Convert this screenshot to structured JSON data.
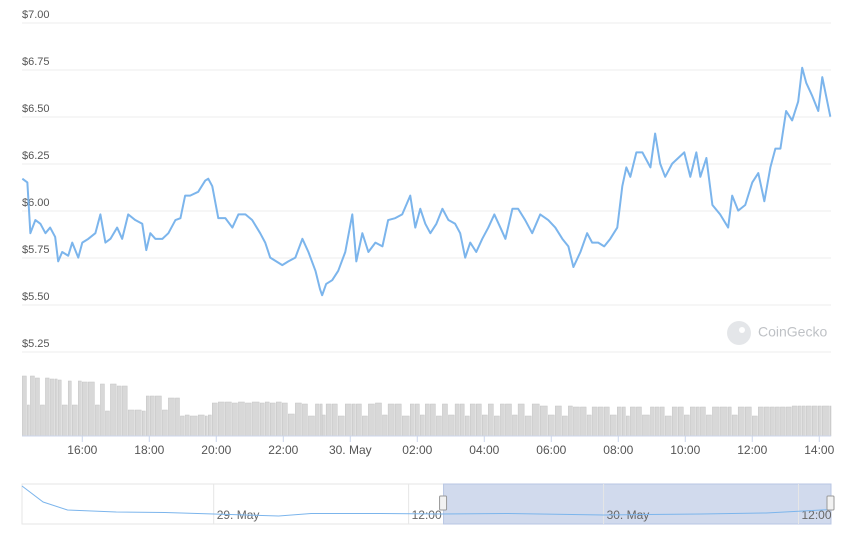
{
  "chart_data": {
    "type": "line",
    "watermark": "CoinGecko",
    "color": "#7cb5ec",
    "grid": true,
    "ylim": [
      5.25,
      7.0
    ],
    "yticks": [
      {
        "value": 5.25,
        "label": "$5.25"
      },
      {
        "value": 5.5,
        "label": "$5.50"
      },
      {
        "value": 5.75,
        "label": "$5.75"
      },
      {
        "value": 6.0,
        "label": "$6.00"
      },
      {
        "value": 6.25,
        "label": "$6.25"
      },
      {
        "value": 6.5,
        "label": "$6.50"
      },
      {
        "value": 6.75,
        "label": "$6.75"
      },
      {
        "value": 7.0,
        "label": "$7.00"
      }
    ],
    "xlim": [
      14.2,
      38.35
    ],
    "xticks": [
      {
        "value": 16,
        "label": "16:00"
      },
      {
        "value": 18,
        "label": "18:00"
      },
      {
        "value": 20,
        "label": "20:00"
      },
      {
        "value": 22,
        "label": "22:00"
      },
      {
        "value": 24,
        "label": "30. May"
      },
      {
        "value": 26,
        "label": "02:00"
      },
      {
        "value": 28,
        "label": "04:00"
      },
      {
        "value": 30,
        "label": "06:00"
      },
      {
        "value": 32,
        "label": "08:00"
      },
      {
        "value": 34,
        "label": "10:00"
      },
      {
        "value": 36,
        "label": "12:00"
      },
      {
        "value": 38,
        "label": "14:00"
      }
    ],
    "x": [
      14.21,
      14.36,
      14.45,
      14.6,
      14.75,
      14.9,
      15.04,
      15.19,
      15.28,
      15.4,
      15.58,
      15.7,
      15.88,
      16.0,
      16.18,
      16.39,
      16.54,
      16.69,
      16.84,
      17.04,
      17.19,
      17.37,
      17.58,
      17.79,
      17.91,
      18.03,
      18.18,
      18.39,
      18.57,
      18.78,
      18.93,
      19.07,
      19.22,
      19.46,
      19.67,
      19.76,
      19.88,
      20.06,
      20.27,
      20.48,
      20.66,
      20.87,
      21.07,
      21.31,
      21.46,
      21.61,
      21.79,
      21.97,
      22.15,
      22.36,
      22.57,
      22.75,
      22.96,
      23.1,
      23.16,
      23.28,
      23.46,
      23.64,
      23.85,
      24.06,
      24.18,
      24.36,
      24.54,
      24.75,
      24.96,
      25.13,
      25.34,
      25.55,
      25.79,
      25.94,
      26.09,
      26.24,
      26.39,
      26.57,
      26.75,
      26.93,
      27.13,
      27.28,
      27.43,
      27.58,
      27.76,
      27.94,
      28.12,
      28.3,
      28.48,
      28.63,
      28.84,
      29.01,
      29.22,
      29.43,
      29.67,
      29.91,
      30.12,
      30.33,
      30.51,
      30.66,
      30.87,
      31.07,
      31.22,
      31.4,
      31.58,
      31.76,
      31.97,
      32.12,
      32.24,
      32.36,
      32.54,
      32.72,
      32.96,
      33.1,
      33.25,
      33.4,
      33.61,
      33.79,
      33.97,
      34.15,
      34.33,
      34.45,
      34.63,
      34.81,
      35.04,
      35.28,
      35.4,
      35.58,
      35.79,
      36.0,
      36.18,
      36.36,
      36.54,
      36.69,
      36.84,
      37.01,
      37.19,
      37.37,
      37.49,
      37.61,
      37.79,
      37.97,
      38.09,
      38.33
    ],
    "values": [
      6.14,
      6.12,
      5.85,
      5.92,
      5.9,
      5.85,
      5.88,
      5.83,
      5.7,
      5.75,
      5.73,
      5.8,
      5.72,
      5.8,
      5.82,
      5.85,
      5.95,
      5.8,
      5.82,
      5.88,
      5.82,
      5.95,
      5.92,
      5.9,
      5.76,
      5.85,
      5.82,
      5.82,
      5.85,
      5.92,
      5.93,
      6.05,
      6.05,
      6.07,
      6.13,
      6.14,
      6.1,
      5.93,
      5.93,
      5.88,
      5.95,
      5.95,
      5.92,
      5.85,
      5.8,
      5.72,
      5.7,
      5.68,
      5.7,
      5.72,
      5.82,
      5.75,
      5.65,
      5.55,
      5.52,
      5.58,
      5.6,
      5.65,
      5.75,
      5.95,
      5.7,
      5.85,
      5.75,
      5.8,
      5.78,
      5.92,
      5.93,
      5.95,
      6.05,
      5.88,
      5.98,
      5.9,
      5.85,
      5.9,
      5.98,
      5.92,
      5.9,
      5.85,
      5.72,
      5.8,
      5.75,
      5.82,
      5.88,
      5.95,
      5.88,
      5.82,
      5.98,
      5.98,
      5.92,
      5.85,
      5.95,
      5.92,
      5.88,
      5.82,
      5.78,
      5.67,
      5.75,
      5.85,
      5.8,
      5.8,
      5.78,
      5.82,
      5.88,
      6.1,
      6.2,
      6.15,
      6.28,
      6.28,
      6.2,
      6.38,
      6.22,
      6.15,
      6.22,
      6.25,
      6.28,
      6.15,
      6.28,
      6.15,
      6.25,
      6.0,
      5.95,
      5.88,
      6.05,
      5.97,
      6.0,
      6.12,
      6.17,
      6.02,
      6.2,
      6.3,
      6.3,
      6.5,
      6.45,
      6.55,
      6.73,
      6.65,
      6.58,
      6.5,
      6.68,
      6.47
    ],
    "volume": {
      "color": "#d8d8d8",
      "ylim": [
        0,
        60
      ],
      "values": [
        60,
        31,
        60,
        58,
        31,
        58,
        57,
        57,
        56,
        31,
        55,
        31,
        55,
        54,
        54,
        31,
        52,
        25,
        52,
        50,
        50,
        26,
        26,
        25,
        40,
        40,
        40,
        26,
        38,
        38,
        20,
        21,
        20,
        21,
        20,
        21,
        33,
        34,
        34,
        33,
        34,
        33,
        34,
        33,
        34,
        33,
        34,
        33,
        22,
        33,
        32,
        20,
        32,
        32,
        21,
        32,
        32,
        20,
        32,
        32,
        32,
        20,
        32,
        33,
        21,
        32,
        32,
        20,
        32,
        32,
        21,
        32,
        32,
        20,
        32,
        21,
        32,
        32,
        20,
        32,
        32,
        21,
        32,
        20,
        32,
        32,
        21,
        32,
        20,
        32,
        30,
        21,
        30,
        20,
        30,
        29,
        29,
        21,
        29,
        29,
        29,
        21,
        29,
        29,
        20,
        29,
        29,
        21,
        29,
        29,
        29,
        20,
        29,
        29,
        21,
        29,
        29,
        29,
        21,
        29,
        29,
        29,
        21,
        29,
        29,
        20,
        29,
        29,
        29,
        29,
        29,
        29,
        30,
        30,
        30,
        30,
        30,
        30,
        30,
        30
      ]
    },
    "navigator": {
      "xlim": [
        -11.8,
        38.0
      ],
      "ylim": [
        5.0,
        9.0
      ],
      "xticks": [
        {
          "value": 0,
          "label": "29. May"
        },
        {
          "value": 12,
          "label": "12:00"
        },
        {
          "value": 24,
          "label": "30. May"
        },
        {
          "value": 36,
          "label": "12:00"
        }
      ],
      "selection": [
        14.15,
        38.0
      ],
      "x": [
        -11.8,
        -10.5,
        -9,
        -6,
        -3,
        0,
        4,
        6,
        10,
        14,
        18,
        24,
        30,
        34,
        38
      ],
      "values": [
        8.8,
        7.2,
        6.4,
        6.2,
        6.15,
        6.0,
        5.8,
        6.05,
        6.05,
        6.0,
        6.05,
        5.9,
        6.0,
        6.1,
        6.45
      ]
    }
  }
}
